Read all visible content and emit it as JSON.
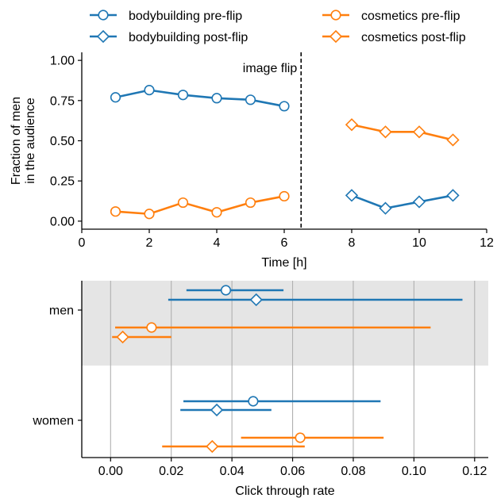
{
  "colors": {
    "blue": "#1f77b4",
    "orange": "#ff7f0e",
    "band": "#e5e5e5",
    "grid": "#b0b0b0"
  },
  "legend": {
    "items": [
      {
        "label": "bodybuilding pre-flip",
        "color": "blue",
        "marker": "circle"
      },
      {
        "label": "bodybuilding post-flip",
        "color": "blue",
        "marker": "diamond"
      },
      {
        "label": "cosmetics pre-flip",
        "color": "orange",
        "marker": "circle"
      },
      {
        "label": "cosmetics post-flip",
        "color": "orange",
        "marker": "diamond"
      }
    ]
  },
  "chart_data": [
    {
      "type": "line",
      "xlabel": "Time [h]",
      "ylabel": "Fraction of men\nin the audience",
      "xlim": [
        0,
        12
      ],
      "ylim": [
        -0.05,
        1.05
      ],
      "xticks": [
        0,
        2,
        4,
        6,
        8,
        10,
        12
      ],
      "xtick_labels": [
        "0",
        "2",
        "4",
        "6",
        "8",
        "10",
        "12"
      ],
      "yticks": [
        0,
        0.25,
        0.5,
        0.75,
        1.0
      ],
      "ytick_labels": [
        "0.00",
        "0.25",
        "0.50",
        "0.75",
        "1.00"
      ],
      "grid": false,
      "annotation": {
        "text": "image flip",
        "x": 6.5
      },
      "series": [
        {
          "name": "bodybuilding pre-flip",
          "color": "blue",
          "marker": "circle",
          "x": [
            1,
            2,
            3,
            4,
            5,
            6
          ],
          "y": [
            0.77,
            0.815,
            0.785,
            0.765,
            0.755,
            0.715
          ]
        },
        {
          "name": "bodybuilding post-flip",
          "color": "blue",
          "marker": "diamond",
          "x": [
            8,
            9,
            10,
            11
          ],
          "y": [
            0.16,
            0.08,
            0.12,
            0.16
          ]
        },
        {
          "name": "cosmetics pre-flip",
          "color": "orange",
          "marker": "circle",
          "x": [
            1,
            2,
            3,
            4,
            5,
            6
          ],
          "y": [
            0.06,
            0.045,
            0.115,
            0.055,
            0.115,
            0.155
          ]
        },
        {
          "name": "cosmetics post-flip",
          "color": "orange",
          "marker": "diamond",
          "x": [
            8,
            9,
            10,
            11
          ],
          "y": [
            0.6,
            0.555,
            0.555,
            0.505
          ]
        }
      ]
    },
    {
      "type": "scatter",
      "xlabel": "Click through rate",
      "xlim": [
        -0.0095,
        0.1245
      ],
      "xticks": [
        0,
        0.02,
        0.04,
        0.06,
        0.08,
        0.1,
        0.12
      ],
      "xtick_labels": [
        "0.00",
        "0.02",
        "0.04",
        "0.06",
        "0.08",
        "0.10",
        "0.12"
      ],
      "categories": [
        "men",
        "women"
      ],
      "highlighted_category": "men",
      "grid": true,
      "points": [
        {
          "series": "bodybuilding pre-flip",
          "group": "men",
          "value": 0.038,
          "low": 0.025,
          "high": 0.057,
          "color": "blue",
          "marker": "circle"
        },
        {
          "series": "bodybuilding post-flip",
          "group": "men",
          "value": 0.048,
          "low": 0.019,
          "high": 0.116,
          "color": "blue",
          "marker": "diamond"
        },
        {
          "series": "cosmetics pre-flip",
          "group": "men",
          "value": 0.0135,
          "low": 0.0015,
          "high": 0.1055,
          "color": "orange",
          "marker": "circle"
        },
        {
          "series": "cosmetics post-flip",
          "group": "men",
          "value": 0.004,
          "low": 0.0005,
          "high": 0.02,
          "color": "orange",
          "marker": "diamond"
        },
        {
          "series": "bodybuilding pre-flip",
          "group": "women",
          "value": 0.047,
          "low": 0.024,
          "high": 0.089,
          "color": "blue",
          "marker": "circle"
        },
        {
          "series": "bodybuilding post-flip",
          "group": "women",
          "value": 0.035,
          "low": 0.023,
          "high": 0.053,
          "color": "blue",
          "marker": "diamond"
        },
        {
          "series": "cosmetics pre-flip",
          "group": "women",
          "value": 0.0625,
          "low": 0.043,
          "high": 0.09,
          "color": "orange",
          "marker": "circle"
        },
        {
          "series": "cosmetics post-flip",
          "group": "women",
          "value": 0.0335,
          "low": 0.017,
          "high": 0.064,
          "color": "orange",
          "marker": "diamond"
        }
      ]
    }
  ]
}
